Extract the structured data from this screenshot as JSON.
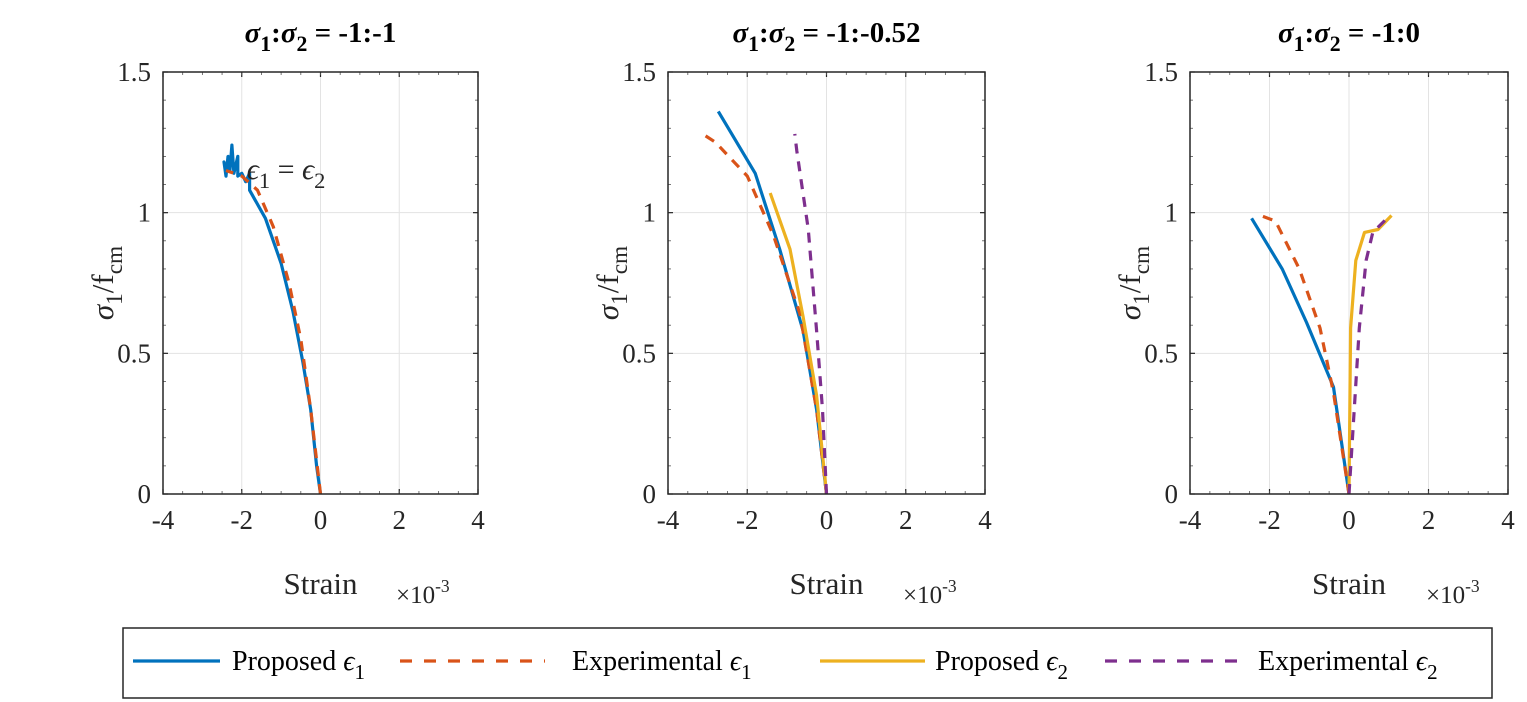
{
  "chart_data": [
    {
      "type": "line",
      "title": "σ_{1}:σ_{2} = -1:-1",
      "xlabel": "Strain",
      "xscale_label": "×10^{-3}",
      "ylabel": "σ_{1}/f_{cm}",
      "xlim": [
        -4,
        4
      ],
      "ylim": [
        0,
        1.5
      ],
      "xticks": [
        "-4",
        "-2",
        "0",
        "2",
        "4"
      ],
      "yticks": [
        "0",
        "0.5",
        "1",
        "1.5"
      ],
      "grid": true,
      "annotation": {
        "text": "ϵ_{1} = ϵ_{2}",
        "x": -2.0,
        "y": 1.12
      },
      "series": [
        {
          "name": "Proposed ϵ1",
          "style": "solid",
          "color": "#0072BD",
          "x": [
            0,
            -0.1,
            -0.25,
            -0.45,
            -0.7,
            -1.0,
            -1.4,
            -1.8,
            -1.8,
            -1.9,
            -2.0,
            -2.1,
            -2.1,
            -2.2,
            -2.25,
            -2.3,
            -2.35,
            -2.4,
            -2.45,
            -2.4
          ],
          "y": [
            0,
            0.1,
            0.3,
            0.47,
            0.65,
            0.82,
            0.98,
            1.08,
            1.14,
            1.11,
            1.14,
            1.13,
            1.2,
            1.14,
            1.24,
            1.15,
            1.2,
            1.13,
            1.18,
            1.15
          ]
        },
        {
          "name": "Experimental ϵ1",
          "style": "dashed",
          "color": "#D95319",
          "x": [
            0,
            -0.25,
            -0.5,
            -0.8,
            -1.2,
            -1.6,
            -2.0,
            -2.4
          ],
          "y": [
            0,
            0.3,
            0.55,
            0.75,
            0.95,
            1.08,
            1.13,
            1.15
          ]
        }
      ]
    },
    {
      "type": "line",
      "title": "σ_{1}:σ_{2} = -1:-0.52",
      "xlabel": "Strain",
      "xscale_label": "×10^{-3}",
      "ylabel": "σ_{1}/f_{cm}",
      "xlim": [
        -4,
        4
      ],
      "ylim": [
        0,
        1.5
      ],
      "xticks": [
        "-4",
        "-2",
        "0",
        "2",
        "4"
      ],
      "yticks": [
        "0",
        "0.5",
        "1",
        "1.5"
      ],
      "grid": true,
      "series": [
        {
          "name": "Proposed ϵ1",
          "style": "solid",
          "color": "#0072BD",
          "x": [
            0,
            -0.25,
            -0.59,
            -1.18,
            -1.8,
            -2.73
          ],
          "y": [
            0,
            0.3,
            0.58,
            0.87,
            1.14,
            1.36
          ]
        },
        {
          "name": "Experimental ϵ1",
          "style": "dashed",
          "color": "#D95319",
          "x": [
            0,
            -0.25,
            -0.67,
            -1.34,
            -2.0,
            -2.8,
            -3.13
          ],
          "y": [
            0,
            0.3,
            0.64,
            0.92,
            1.13,
            1.25,
            1.28
          ]
        },
        {
          "name": "Proposed ϵ2",
          "style": "solid",
          "color": "#EDB120",
          "x": [
            0,
            -0.25,
            -0.59,
            -0.92,
            -1.42
          ],
          "y": [
            0,
            0.35,
            0.63,
            0.87,
            1.07
          ]
        },
        {
          "name": "Experimental ϵ2",
          "style": "dashed",
          "color": "#7E2F8E",
          "x": [
            0,
            -0.1,
            -0.25,
            -0.46,
            -0.75,
            -0.8
          ],
          "y": [
            0,
            0.3,
            0.58,
            0.94,
            1.22,
            1.28
          ]
        }
      ]
    },
    {
      "type": "line",
      "title": "σ_{1}:σ_{2} = -1:0",
      "xlabel": "Strain",
      "xscale_label": "×10^{-3}",
      "ylabel": "σ_{1}/f_{cm}",
      "xlim": [
        -4,
        4
      ],
      "ylim": [
        0,
        1.5
      ],
      "xticks": [
        "-4",
        "-2",
        "0",
        "2",
        "4"
      ],
      "yticks": [
        "0",
        "0.5",
        "1",
        "1.5"
      ],
      "grid": true,
      "series": [
        {
          "name": "Proposed ϵ1",
          "style": "solid",
          "color": "#0072BD",
          "x": [
            0,
            -0.39,
            -1.07,
            -1.68,
            -2.45
          ],
          "y": [
            0,
            0.38,
            0.61,
            0.8,
            0.98
          ]
        },
        {
          "name": "Experimental ϵ1",
          "style": "dashed",
          "color": "#D95319",
          "x": [
            0,
            -0.39,
            -0.73,
            -1.25,
            -1.85,
            -2.23
          ],
          "y": [
            0,
            0.36,
            0.59,
            0.8,
            0.97,
            0.99
          ]
        },
        {
          "name": "Proposed ϵ2",
          "style": "solid",
          "color": "#EDB120",
          "x": [
            0,
            0.04,
            0.17,
            0.39,
            0.73,
            1.07
          ],
          "y": [
            0,
            0.59,
            0.83,
            0.93,
            0.94,
            0.99
          ]
        },
        {
          "name": "Experimental ϵ2",
          "style": "dashed",
          "color": "#7E2F8E",
          "x": [
            0,
            0.26,
            0.43,
            0.6,
            1.03
          ],
          "y": [
            0,
            0.59,
            0.83,
            0.93,
            0.99
          ]
        }
      ]
    }
  ],
  "legend": {
    "placement": "bottom",
    "items": [
      {
        "label": "Proposed ϵ_{1}",
        "style": "solid",
        "color": "#0072BD"
      },
      {
        "label": "Experimental ϵ_{1}",
        "style": "dashed",
        "color": "#D95319"
      },
      {
        "label": "Proposed ϵ_{2}",
        "style": "solid",
        "color": "#EDB120"
      },
      {
        "label": "Experimental ϵ_{2}",
        "style": "dashed",
        "color": "#7E2F8E"
      }
    ]
  }
}
